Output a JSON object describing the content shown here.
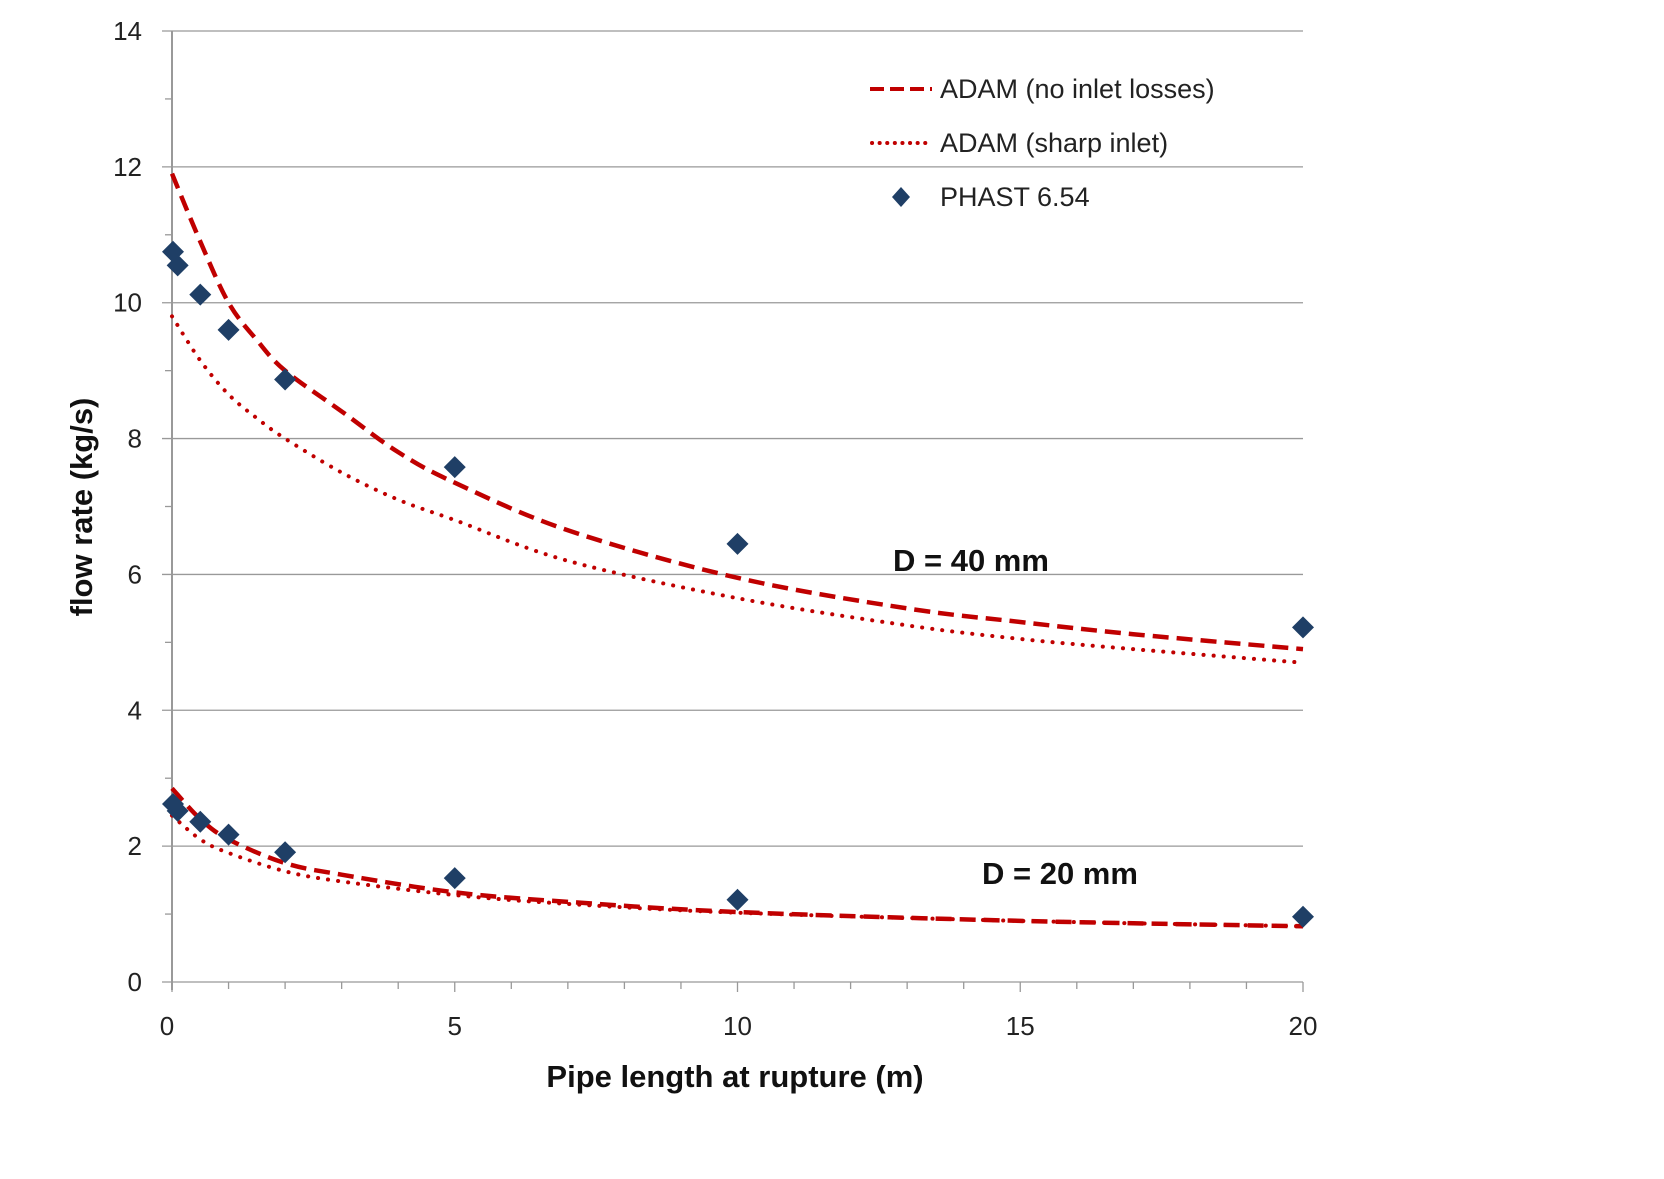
{
  "chart_data": {
    "type": "scatter",
    "title": "",
    "xlabel": "Pipe length at rupture (m)",
    "ylabel": "flow rate (kg/s)",
    "xlim": [
      0,
      20
    ],
    "ylim": [
      0,
      14
    ],
    "xticks": [
      0,
      5,
      10,
      15,
      20
    ],
    "yticks": [
      0,
      2,
      4,
      6,
      8,
      10,
      12,
      14
    ],
    "grid": "horizontal",
    "legend_position": "top-right",
    "colors": {
      "adam": "#c00000",
      "phast": "#1f3f66",
      "grid": "#999999"
    },
    "legend": [
      {
        "label": "ADAM (no inlet losses)",
        "style": "dashed"
      },
      {
        "label": "ADAM (sharp inlet)",
        "style": "dotted"
      },
      {
        "label": "PHAST 6.54",
        "style": "diamond"
      }
    ],
    "annotations": [
      {
        "text": "D = 40 mm",
        "x": 12.8,
        "y": 6.2
      },
      {
        "text": "D = 20 mm",
        "x": 14.3,
        "y": 1.6
      }
    ],
    "series": [
      {
        "name": "ADAM (no inlet losses)",
        "group": "D = 40 mm",
        "style": "dashed",
        "x": [
          0,
          0.5,
          1,
          1.5,
          2,
          3,
          4,
          5,
          7,
          10,
          13,
          15,
          17,
          20
        ],
        "y": [
          11.9,
          10.9,
          10.0,
          9.45,
          9.0,
          8.4,
          7.8,
          7.35,
          6.65,
          5.95,
          5.5,
          5.3,
          5.12,
          4.9
        ]
      },
      {
        "name": "ADAM (sharp inlet)",
        "group": "D = 40 mm",
        "style": "dotted",
        "x": [
          0,
          0.5,
          1,
          1.5,
          2,
          3,
          4,
          5,
          7,
          10,
          13,
          15,
          17,
          20
        ],
        "y": [
          9.8,
          9.15,
          8.65,
          8.3,
          8.0,
          7.5,
          7.1,
          6.8,
          6.2,
          5.65,
          5.25,
          5.05,
          4.9,
          4.7
        ]
      },
      {
        "name": "ADAM (no inlet losses)",
        "group": "D = 20 mm",
        "style": "dashed",
        "x": [
          0,
          0.5,
          1,
          2,
          3,
          5,
          7,
          10,
          15,
          20
        ],
        "y": [
          2.85,
          2.4,
          2.1,
          1.75,
          1.58,
          1.32,
          1.18,
          1.03,
          0.9,
          0.82
        ]
      },
      {
        "name": "ADAM (sharp inlet)",
        "group": "D = 20 mm",
        "style": "dotted",
        "x": [
          0,
          0.5,
          1,
          2,
          3,
          5,
          7,
          10,
          15,
          20
        ],
        "y": [
          2.45,
          2.1,
          1.9,
          1.63,
          1.48,
          1.28,
          1.15,
          1.02,
          0.9,
          0.82
        ]
      },
      {
        "name": "PHAST 6.54",
        "group": "D = 40 mm",
        "style": "diamond",
        "x": [
          0,
          0.1,
          0.5,
          1,
          2,
          5,
          10,
          20
        ],
        "y": [
          10.75,
          10.55,
          10.12,
          9.6,
          8.87,
          7.58,
          6.45,
          5.22
        ]
      },
      {
        "name": "PHAST 6.54",
        "group": "D = 20 mm",
        "style": "diamond",
        "x": [
          0,
          0.1,
          0.5,
          1,
          2,
          5,
          10,
          20
        ],
        "y": [
          2.62,
          2.52,
          2.36,
          2.17,
          1.91,
          1.53,
          1.21,
          0.96
        ]
      }
    ]
  }
}
